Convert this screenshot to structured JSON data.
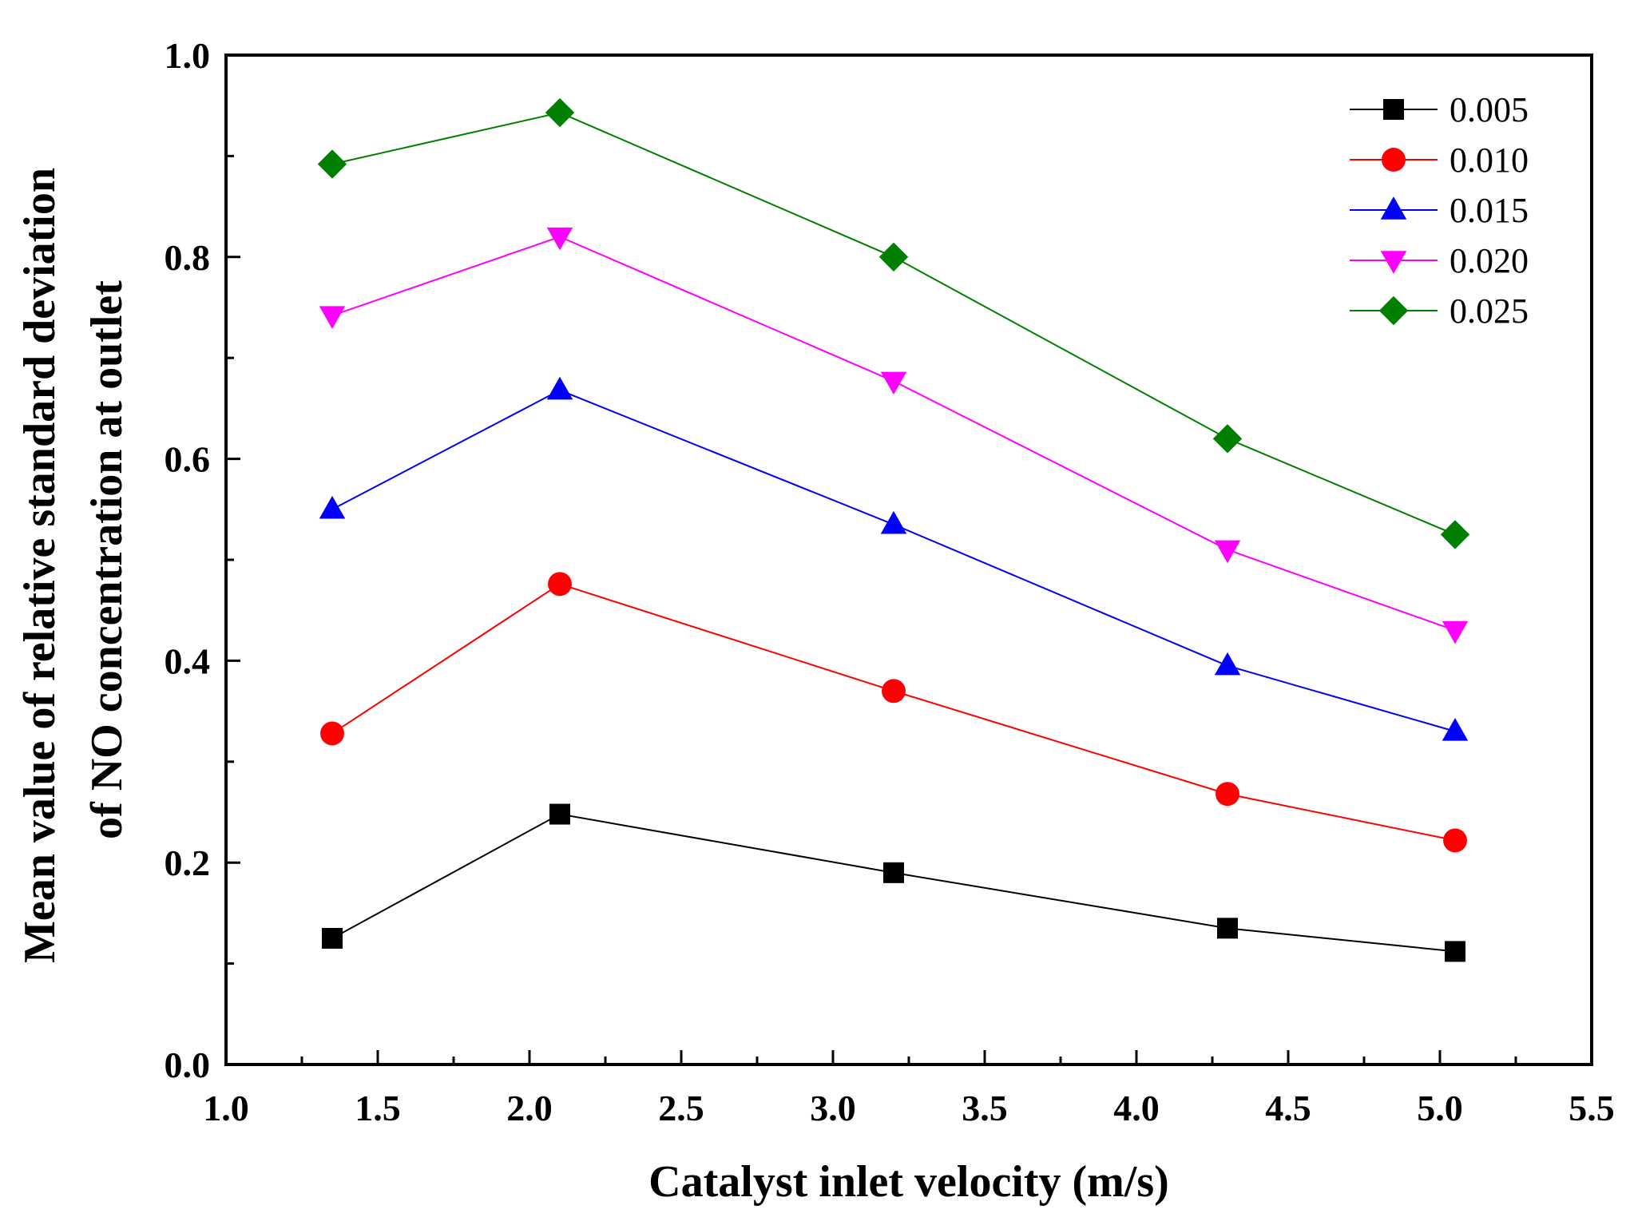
{
  "chart_data": {
    "type": "line",
    "title": "",
    "xlabel": "Catalyst inlet velocity (m/s)",
    "ylabel_lines": [
      "Mean value of relative standard deviation",
      "of NO concentration at outlet"
    ],
    "xlim": [
      1.0,
      5.5
    ],
    "ylim": [
      0.0,
      1.0
    ],
    "x_ticks": [
      1.0,
      1.5,
      2.0,
      2.5,
      3.0,
      3.5,
      4.0,
      4.5,
      5.0,
      5.5
    ],
    "x_tick_labels": [
      "1.0",
      "1.5",
      "2.0",
      "2.5",
      "3.0",
      "3.5",
      "4.0",
      "4.5",
      "5.0",
      "5.5"
    ],
    "x_minor_ticks": [
      1.25,
      1.75,
      2.25,
      2.75,
      3.25,
      3.75,
      4.25,
      4.75,
      5.25
    ],
    "y_ticks": [
      0.0,
      0.2,
      0.4,
      0.6,
      0.8,
      1.0
    ],
    "y_tick_labels": [
      "0.0",
      "0.2",
      "0.4",
      "0.6",
      "0.8",
      "1.0"
    ],
    "y_minor_ticks": [
      0.1,
      0.3,
      0.5,
      0.7,
      0.9
    ],
    "grid": false,
    "legend_position": "top-right",
    "x": [
      1.35,
      2.1,
      3.2,
      4.3,
      5.05
    ],
    "series": [
      {
        "name": "0.005",
        "color": "#000000",
        "marker": "square",
        "values": [
          0.125,
          0.248,
          0.19,
          0.135,
          0.112
        ]
      },
      {
        "name": "0.010",
        "color": "#ff0000",
        "marker": "circle",
        "values": [
          0.328,
          0.476,
          0.37,
          0.268,
          0.222
        ]
      },
      {
        "name": "0.015",
        "color": "#0000ff",
        "marker": "triangle-up",
        "values": [
          0.55,
          0.668,
          0.535,
          0.395,
          0.33
        ]
      },
      {
        "name": "0.020",
        "color": "#ff00ff",
        "marker": "triangle-down",
        "values": [
          0.742,
          0.82,
          0.677,
          0.51,
          0.43
        ]
      },
      {
        "name": "0.025",
        "color": "#008000",
        "marker": "diamond",
        "values": [
          0.892,
          0.943,
          0.8,
          0.62,
          0.525
        ]
      }
    ]
  }
}
